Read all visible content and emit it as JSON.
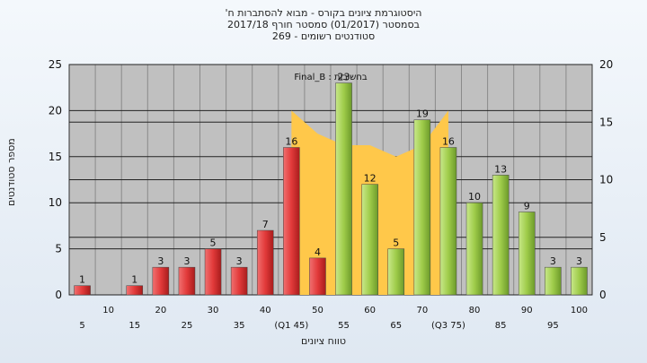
{
  "chart_data": {
    "type": "bar",
    "title_lines": [
      "היסטוגרמת ציונים בקורס - מבוא להסתברות ח'",
      "בסמסטר  (01/2017)  סמסטר חורף 2017/18",
      "סטודנטים רשומים - 269"
    ],
    "ylabel": "מספר סטודנטים",
    "xlabel": "טווח ציונים",
    "legend_text": "בחשיבות : Final_B",
    "ylim": [
      0,
      25
    ],
    "y_ticks": [
      0,
      5,
      10,
      15,
      20,
      25
    ],
    "y2lim": [
      0,
      20
    ],
    "y2_ticks": [
      0,
      5,
      10,
      15,
      20
    ],
    "categories": [
      "5",
      "10",
      "15",
      "20",
      "25",
      "30",
      "35",
      "40",
      "(Q1 45)",
      "50",
      "55",
      "60",
      "65",
      "70",
      "(Q3 75)",
      "80",
      "85",
      "90",
      "95",
      "100"
    ],
    "values": [
      1,
      0,
      1,
      3,
      3,
      5,
      3,
      7,
      16,
      4,
      23,
      12,
      5,
      19,
      16,
      10,
      13,
      9,
      3,
      3
    ],
    "value_labels": [
      "1",
      "",
      "1",
      "3",
      "3",
      "5",
      "3",
      "7",
      "16",
      "4",
      "23",
      "12",
      "5",
      "19",
      "16",
      "10",
      "13",
      "9",
      "3",
      "3"
    ],
    "bar_colors": [
      "red",
      "red",
      "red",
      "red",
      "red",
      "red",
      "red",
      "red",
      "red",
      "red",
      "green",
      "green",
      "green",
      "green",
      "green",
      "green",
      "green",
      "green",
      "green",
      "green"
    ],
    "area_series": {
      "x": [
        "(Q1 45)",
        "50",
        "55",
        "60",
        "65",
        "70",
        "(Q3 75)"
      ],
      "values": [
        16,
        14,
        13,
        13,
        12,
        13,
        16
      ]
    },
    "colors": {
      "plot_bg": "#c0c0c0",
      "red_bar": "#e23a3a",
      "green_bar": "#9fcc4a",
      "area": "#ffc84a"
    },
    "grid": true
  }
}
